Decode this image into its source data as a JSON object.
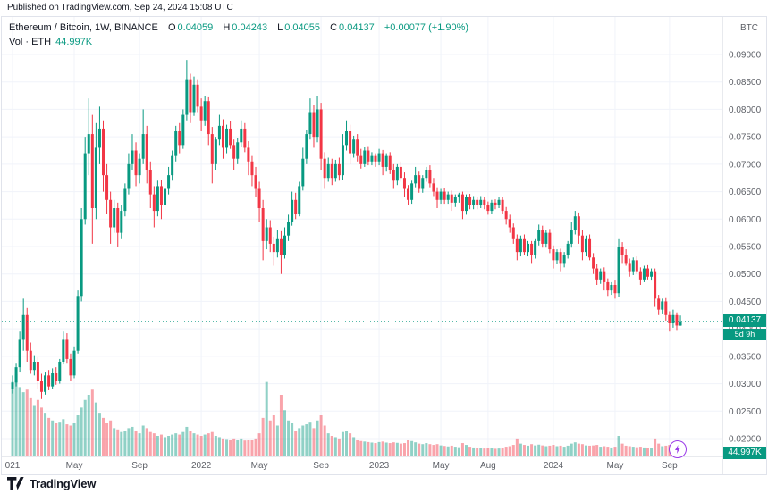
{
  "published_bar": {
    "text": "Published on TradingView.com, Sep 24, 2024 15:08 UTC"
  },
  "legend": {
    "symbol": "Ethereum / Bitcoin, 1W, BINANCE",
    "open_label": "O",
    "open": "0.04059",
    "high_label": "H",
    "high": "0.04243",
    "low_label": "L",
    "low": "0.04055",
    "close_label": "C",
    "close": "0.04137",
    "change": "+0.00077 (+1.90%)",
    "volume_label": "Vol · ETH",
    "volume_value": "44.997K"
  },
  "price_axis": {
    "currency": "BTC",
    "labels": [
      "0.09000",
      "0.08500",
      "0.08000",
      "0.07500",
      "0.07000",
      "0.06500",
      "0.06000",
      "0.05500",
      "0.05000",
      "0.04500",
      "0.04000",
      "0.03500",
      "0.03000",
      "0.02500",
      "0.02000"
    ],
    "last_price_badge": "0.04137",
    "countdown_badge": "5d 9h",
    "volume_badge": "44.997K"
  },
  "time_axis": {
    "labels": [
      {
        "index": 0,
        "text": "021"
      },
      {
        "index": 17,
        "text": "May"
      },
      {
        "index": 35,
        "text": "Sep"
      },
      {
        "index": 52,
        "text": "2022"
      },
      {
        "index": 68,
        "text": "May"
      },
      {
        "index": 85,
        "text": "Sep"
      },
      {
        "index": 101,
        "text": "2023"
      },
      {
        "index": 118,
        "text": "May"
      },
      {
        "index": 131,
        "text": "Aug"
      },
      {
        "index": 149,
        "text": "2024"
      },
      {
        "index": 166,
        "text": "May"
      },
      {
        "index": 181,
        "text": "Sep"
      }
    ]
  },
  "footer": {
    "brand": "TradingView"
  },
  "colors": {
    "up": "#089981",
    "down": "#f23645",
    "grid": "#f0f3fa",
    "axis_line": "#d1d4dc",
    "axis_text": "#5c5f66",
    "boost_purple": "#9b3ce8",
    "brand_dark": "#131722"
  },
  "chart_data": {
    "type": "candlestick+volume",
    "title": "Ethereum / Bitcoin",
    "interval": "1W",
    "exchange": "BINANCE",
    "quote_currency": "BTC",
    "ylim": [
      0.0185,
      0.0925
    ],
    "y_ticks": [
      0.09,
      0.085,
      0.08,
      0.075,
      0.07,
      0.065,
      0.06,
      0.055,
      0.05,
      0.045,
      0.04,
      0.035,
      0.03,
      0.025,
      0.02
    ],
    "last_close": 0.04137,
    "last_ohlc": {
      "open": 0.04059,
      "high": 0.04243,
      "low": 0.04055,
      "close": 0.04137,
      "change": "+0.00077 (+1.90%)"
    },
    "columns": [
      "open",
      "high",
      "low",
      "close",
      "volume_k_eth"
    ],
    "candles": [
      [
        0.029,
        0.0315,
        0.0282,
        0.0302,
        2900
      ],
      [
        0.0302,
        0.0338,
        0.0295,
        0.033,
        3200
      ],
      [
        0.033,
        0.0395,
        0.0322,
        0.038,
        2700
      ],
      [
        0.038,
        0.0455,
        0.036,
        0.0425,
        2500
      ],
      [
        0.0425,
        0.0438,
        0.034,
        0.036,
        2600
      ],
      [
        0.036,
        0.0375,
        0.0318,
        0.0325,
        2300
      ],
      [
        0.0325,
        0.0352,
        0.0315,
        0.034,
        2000
      ],
      [
        0.034,
        0.0348,
        0.029,
        0.0305,
        2200
      ],
      [
        0.0305,
        0.0318,
        0.0272,
        0.0285,
        1900
      ],
      [
        0.0285,
        0.0322,
        0.028,
        0.0315,
        1700
      ],
      [
        0.0315,
        0.0325,
        0.0288,
        0.0295,
        1500
      ],
      [
        0.0295,
        0.0328,
        0.029,
        0.032,
        1400
      ],
      [
        0.032,
        0.033,
        0.0298,
        0.0305,
        1300
      ],
      [
        0.0305,
        0.0345,
        0.03,
        0.034,
        1350
      ],
      [
        0.034,
        0.0395,
        0.0335,
        0.038,
        1450
      ],
      [
        0.038,
        0.0392,
        0.0338,
        0.0345,
        1250
      ],
      [
        0.0345,
        0.0355,
        0.0305,
        0.0315,
        1200
      ],
      [
        0.0315,
        0.0368,
        0.031,
        0.036,
        1300
      ],
      [
        0.036,
        0.047,
        0.0355,
        0.046,
        1600
      ],
      [
        0.046,
        0.062,
        0.045,
        0.06,
        1900
      ],
      [
        0.06,
        0.075,
        0.059,
        0.072,
        2200
      ],
      [
        0.072,
        0.082,
        0.068,
        0.0755,
        2400
      ],
      [
        0.0755,
        0.079,
        0.0555,
        0.062,
        2600
      ],
      [
        0.062,
        0.0775,
        0.06,
        0.073,
        2100
      ],
      [
        0.073,
        0.0805,
        0.07,
        0.0765,
        1700
      ],
      [
        0.0765,
        0.078,
        0.065,
        0.068,
        1500
      ],
      [
        0.068,
        0.07,
        0.061,
        0.0635,
        1300
      ],
      [
        0.0635,
        0.065,
        0.0555,
        0.0585,
        1400
      ],
      [
        0.0585,
        0.0635,
        0.0575,
        0.062,
        1100
      ],
      [
        0.062,
        0.063,
        0.055,
        0.0575,
        1050
      ],
      [
        0.0575,
        0.0625,
        0.0565,
        0.0615,
        950
      ],
      [
        0.0615,
        0.0665,
        0.0605,
        0.0655,
        1000
      ],
      [
        0.0655,
        0.072,
        0.0645,
        0.07,
        1100
      ],
      [
        0.07,
        0.0755,
        0.069,
        0.0725,
        1150
      ],
      [
        0.0725,
        0.074,
        0.066,
        0.068,
        1000
      ],
      [
        0.068,
        0.072,
        0.0665,
        0.071,
        900
      ],
      [
        0.071,
        0.08,
        0.07,
        0.0755,
        1200
      ],
      [
        0.0755,
        0.077,
        0.0665,
        0.069,
        1100
      ],
      [
        0.069,
        0.0705,
        0.062,
        0.0645,
        950
      ],
      [
        0.0645,
        0.066,
        0.0585,
        0.0615,
        900
      ],
      [
        0.0615,
        0.067,
        0.0605,
        0.066,
        800
      ],
      [
        0.066,
        0.0672,
        0.06,
        0.0625,
        850
      ],
      [
        0.0625,
        0.0668,
        0.0615,
        0.0655,
        750
      ],
      [
        0.0655,
        0.0695,
        0.0645,
        0.068,
        800
      ],
      [
        0.068,
        0.0725,
        0.067,
        0.0715,
        850
      ],
      [
        0.0715,
        0.077,
        0.0705,
        0.076,
        900
      ],
      [
        0.076,
        0.0775,
        0.072,
        0.0735,
        850
      ],
      [
        0.0735,
        0.08,
        0.0728,
        0.079,
        950
      ],
      [
        0.079,
        0.089,
        0.078,
        0.0855,
        1150
      ],
      [
        0.0855,
        0.0865,
        0.0775,
        0.0795,
        1000
      ],
      [
        0.0795,
        0.086,
        0.0788,
        0.0845,
        900
      ],
      [
        0.0845,
        0.0855,
        0.0795,
        0.0805,
        850
      ],
      [
        0.0805,
        0.082,
        0.076,
        0.078,
        800
      ],
      [
        0.078,
        0.0825,
        0.077,
        0.0815,
        850
      ],
      [
        0.0815,
        0.0822,
        0.0735,
        0.0755,
        900
      ],
      [
        0.0755,
        0.0768,
        0.0665,
        0.07,
        950
      ],
      [
        0.07,
        0.075,
        0.069,
        0.0745,
        800
      ],
      [
        0.0745,
        0.079,
        0.0735,
        0.077,
        750
      ],
      [
        0.077,
        0.0782,
        0.071,
        0.073,
        700
      ],
      [
        0.073,
        0.0772,
        0.072,
        0.0765,
        680
      ],
      [
        0.0765,
        0.0778,
        0.0728,
        0.0735,
        650
      ],
      [
        0.0735,
        0.0745,
        0.069,
        0.071,
        700
      ],
      [
        0.071,
        0.0748,
        0.07,
        0.074,
        650
      ],
      [
        0.074,
        0.078,
        0.0732,
        0.0765,
        700
      ],
      [
        0.0765,
        0.0775,
        0.0722,
        0.073,
        620
      ],
      [
        0.073,
        0.0742,
        0.068,
        0.0705,
        640
      ],
      [
        0.0705,
        0.0715,
        0.066,
        0.068,
        660
      ],
      [
        0.068,
        0.0695,
        0.064,
        0.0655,
        700
      ],
      [
        0.0655,
        0.0668,
        0.0595,
        0.062,
        900
      ],
      [
        0.062,
        0.0635,
        0.0525,
        0.056,
        1500
      ],
      [
        0.056,
        0.06,
        0.0545,
        0.0585,
        2900
      ],
      [
        0.0585,
        0.0598,
        0.054,
        0.0555,
        1400
      ],
      [
        0.0555,
        0.0568,
        0.0515,
        0.054,
        1600
      ],
      [
        0.054,
        0.058,
        0.053,
        0.0565,
        1200
      ],
      [
        0.0565,
        0.0578,
        0.05,
        0.0535,
        2400
      ],
      [
        0.0535,
        0.0585,
        0.0528,
        0.057,
        1800
      ],
      [
        0.057,
        0.0608,
        0.056,
        0.0595,
        1400
      ],
      [
        0.0595,
        0.065,
        0.0588,
        0.0635,
        1300
      ],
      [
        0.0635,
        0.0648,
        0.06,
        0.061,
        1000
      ],
      [
        0.061,
        0.0668,
        0.0605,
        0.066,
        1100
      ],
      [
        0.066,
        0.073,
        0.0652,
        0.071,
        1200
      ],
      [
        0.071,
        0.0762,
        0.07,
        0.0755,
        1250
      ],
      [
        0.0755,
        0.082,
        0.0745,
        0.0795,
        1350
      ],
      [
        0.0795,
        0.0808,
        0.073,
        0.075,
        1100
      ],
      [
        0.075,
        0.0825,
        0.074,
        0.08,
        1400
      ],
      [
        0.08,
        0.0812,
        0.069,
        0.071,
        1600
      ],
      [
        0.071,
        0.0722,
        0.0655,
        0.0675,
        1200
      ],
      [
        0.0675,
        0.0712,
        0.0668,
        0.07,
        900
      ],
      [
        0.07,
        0.071,
        0.0662,
        0.0675,
        800
      ],
      [
        0.0675,
        0.0708,
        0.0668,
        0.07,
        750
      ],
      [
        0.07,
        0.0712,
        0.067,
        0.068,
        700
      ],
      [
        0.068,
        0.0755,
        0.0672,
        0.0735,
        950
      ],
      [
        0.0735,
        0.078,
        0.0725,
        0.076,
        1000
      ],
      [
        0.076,
        0.0772,
        0.07,
        0.072,
        900
      ],
      [
        0.072,
        0.0752,
        0.0712,
        0.0745,
        750
      ],
      [
        0.0745,
        0.0755,
        0.0705,
        0.0715,
        650
      ],
      [
        0.0715,
        0.0728,
        0.0692,
        0.07,
        600
      ],
      [
        0.07,
        0.0732,
        0.0695,
        0.0725,
        580
      ],
      [
        0.0725,
        0.0733,
        0.0698,
        0.0705,
        560
      ],
      [
        0.0705,
        0.0722,
        0.0698,
        0.0715,
        540
      ],
      [
        0.0715,
        0.072,
        0.0695,
        0.0705,
        520
      ],
      [
        0.0705,
        0.0728,
        0.0698,
        0.072,
        560
      ],
      [
        0.072,
        0.0726,
        0.068,
        0.0695,
        580
      ],
      [
        0.0695,
        0.072,
        0.0688,
        0.0715,
        540
      ],
      [
        0.0715,
        0.0722,
        0.0682,
        0.069,
        520
      ],
      [
        0.069,
        0.07,
        0.0655,
        0.067,
        550
      ],
      [
        0.067,
        0.07,
        0.0662,
        0.0695,
        530
      ],
      [
        0.0695,
        0.0705,
        0.0668,
        0.0675,
        500
      ],
      [
        0.0675,
        0.0685,
        0.064,
        0.0655,
        520
      ],
      [
        0.0655,
        0.0662,
        0.0625,
        0.0635,
        650
      ],
      [
        0.0635,
        0.067,
        0.0628,
        0.0665,
        600
      ],
      [
        0.0665,
        0.0695,
        0.0658,
        0.068,
        550
      ],
      [
        0.068,
        0.0688,
        0.0648,
        0.0655,
        500
      ],
      [
        0.0655,
        0.068,
        0.0648,
        0.0675,
        480
      ],
      [
        0.0675,
        0.0695,
        0.0668,
        0.069,
        520
      ],
      [
        0.069,
        0.0698,
        0.0658,
        0.0665,
        480
      ],
      [
        0.0665,
        0.0675,
        0.0642,
        0.065,
        450
      ],
      [
        0.065,
        0.0658,
        0.062,
        0.0635,
        480
      ],
      [
        0.0635,
        0.0655,
        0.0628,
        0.065,
        430
      ],
      [
        0.065,
        0.0656,
        0.0628,
        0.0635,
        410
      ],
      [
        0.0635,
        0.065,
        0.0628,
        0.0645,
        390
      ],
      [
        0.0645,
        0.0652,
        0.0615,
        0.063,
        420
      ],
      [
        0.063,
        0.0645,
        0.0622,
        0.064,
        380
      ],
      [
        0.064,
        0.0648,
        0.063,
        0.0645,
        360
      ],
      [
        0.0645,
        0.065,
        0.06,
        0.0615,
        520
      ],
      [
        0.0615,
        0.0645,
        0.0608,
        0.064,
        450
      ],
      [
        0.064,
        0.0646,
        0.0618,
        0.0625,
        380
      ],
      [
        0.0625,
        0.0642,
        0.0618,
        0.0635,
        350
      ],
      [
        0.0635,
        0.064,
        0.0618,
        0.0625,
        330
      ],
      [
        0.0625,
        0.0642,
        0.062,
        0.0635,
        320
      ],
      [
        0.0635,
        0.064,
        0.0618,
        0.0625,
        310
      ],
      [
        0.0625,
        0.0632,
        0.0608,
        0.0615,
        330
      ],
      [
        0.0615,
        0.0635,
        0.061,
        0.063,
        320
      ],
      [
        0.063,
        0.0636,
        0.0618,
        0.0625,
        300
      ],
      [
        0.0625,
        0.064,
        0.062,
        0.0635,
        310
      ],
      [
        0.0635,
        0.0641,
        0.061,
        0.0615,
        330
      ],
      [
        0.0615,
        0.0622,
        0.059,
        0.06,
        380
      ],
      [
        0.06,
        0.0608,
        0.0575,
        0.0585,
        400
      ],
      [
        0.0585,
        0.0592,
        0.0555,
        0.0565,
        450
      ],
      [
        0.0565,
        0.0572,
        0.0525,
        0.054,
        700
      ],
      [
        0.054,
        0.057,
        0.0532,
        0.0565,
        500
      ],
      [
        0.0565,
        0.0572,
        0.0535,
        0.054,
        450
      ],
      [
        0.054,
        0.056,
        0.0532,
        0.0555,
        420
      ],
      [
        0.0555,
        0.056,
        0.052,
        0.0535,
        480
      ],
      [
        0.0535,
        0.0565,
        0.0528,
        0.056,
        430
      ],
      [
        0.056,
        0.059,
        0.0552,
        0.058,
        460
      ],
      [
        0.058,
        0.0588,
        0.0548,
        0.0555,
        430
      ],
      [
        0.0555,
        0.058,
        0.0548,
        0.0575,
        400
      ],
      [
        0.0575,
        0.0582,
        0.0538,
        0.0545,
        420
      ],
      [
        0.0545,
        0.0552,
        0.051,
        0.0525,
        450
      ],
      [
        0.0525,
        0.0545,
        0.0518,
        0.054,
        400
      ],
      [
        0.054,
        0.0546,
        0.0505,
        0.052,
        420
      ],
      [
        0.052,
        0.054,
        0.0512,
        0.0535,
        380
      ],
      [
        0.0535,
        0.056,
        0.0528,
        0.0555,
        420
      ],
      [
        0.0555,
        0.0595,
        0.0548,
        0.058,
        500
      ],
      [
        0.058,
        0.0615,
        0.0572,
        0.0605,
        550
      ],
      [
        0.0605,
        0.0612,
        0.0555,
        0.057,
        500
      ],
      [
        0.057,
        0.058,
        0.0525,
        0.054,
        480
      ],
      [
        0.054,
        0.057,
        0.0532,
        0.0565,
        430
      ],
      [
        0.0565,
        0.0572,
        0.0525,
        0.053,
        420
      ],
      [
        0.053,
        0.0538,
        0.05,
        0.051,
        430
      ],
      [
        0.051,
        0.0518,
        0.048,
        0.049,
        450
      ],
      [
        0.049,
        0.051,
        0.0482,
        0.0505,
        380
      ],
      [
        0.0505,
        0.0512,
        0.047,
        0.0485,
        400
      ],
      [
        0.0485,
        0.0492,
        0.046,
        0.047,
        380
      ],
      [
        0.047,
        0.0485,
        0.0462,
        0.048,
        350
      ],
      [
        0.048,
        0.0488,
        0.0455,
        0.0465,
        380
      ],
      [
        0.0465,
        0.0565,
        0.0458,
        0.055,
        800
      ],
      [
        0.055,
        0.0558,
        0.052,
        0.0535,
        500
      ],
      [
        0.0535,
        0.0545,
        0.0515,
        0.052,
        420
      ],
      [
        0.052,
        0.0528,
        0.0495,
        0.0505,
        400
      ],
      [
        0.0505,
        0.053,
        0.0498,
        0.0525,
        380
      ],
      [
        0.0525,
        0.0532,
        0.05,
        0.0505,
        360
      ],
      [
        0.0505,
        0.0512,
        0.048,
        0.049,
        380
      ],
      [
        0.049,
        0.0515,
        0.0485,
        0.051,
        350
      ],
      [
        0.051,
        0.0516,
        0.049,
        0.0495,
        330
      ],
      [
        0.0495,
        0.051,
        0.0488,
        0.0505,
        320
      ],
      [
        0.0505,
        0.051,
        0.044,
        0.0455,
        700
      ],
      [
        0.0455,
        0.0462,
        0.0425,
        0.0435,
        500
      ],
      [
        0.0435,
        0.0455,
        0.0428,
        0.045,
        400
      ],
      [
        0.045,
        0.0456,
        0.0415,
        0.0425,
        420
      ],
      [
        0.0425,
        0.0432,
        0.0395,
        0.041,
        450
      ],
      [
        0.041,
        0.0435,
        0.0402,
        0.0425,
        380
      ],
      [
        0.0425,
        0.043,
        0.0398,
        0.0406,
        350
      ],
      [
        0.04059,
        0.04243,
        0.04055,
        0.04137,
        45
      ]
    ]
  }
}
